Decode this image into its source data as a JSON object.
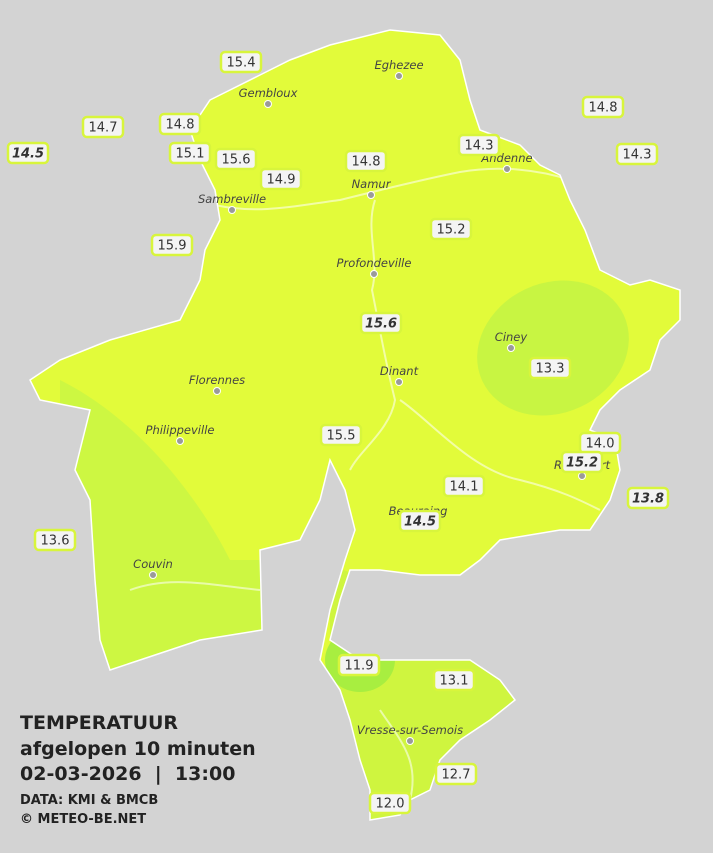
{
  "info": {
    "title": "TEMPERATUUR",
    "subtitle": "afgelopen 10 minuten",
    "datetime": "02-03-2026  |  13:00",
    "source": "DATA: KMI & BMCB",
    "credit": "© METEO-BE.NET"
  },
  "cities": [
    "Eghezee",
    "Gembloux",
    "Andenne",
    "Namur",
    "Sambreville",
    "Profondeville",
    "Ciney",
    "Dinant",
    "Florennes",
    "Philippeville",
    "Rochefort",
    "Beauraing",
    "Couvin",
    "Vresse-sur-Semois"
  ],
  "readings": [
    "15.4",
    "14.7",
    "14.8",
    "14.5",
    "15.1",
    "15.6",
    "14.9",
    "14.8",
    "14.3",
    "14.8",
    "14.3",
    "15.2",
    "15.9",
    "15.6",
    "13.3",
    "15.5",
    "14.0",
    "15.2",
    "14.1",
    "13.8",
    "14.5",
    "13.6",
    "11.9",
    "13.1",
    "12.7",
    "12.0"
  ]
}
